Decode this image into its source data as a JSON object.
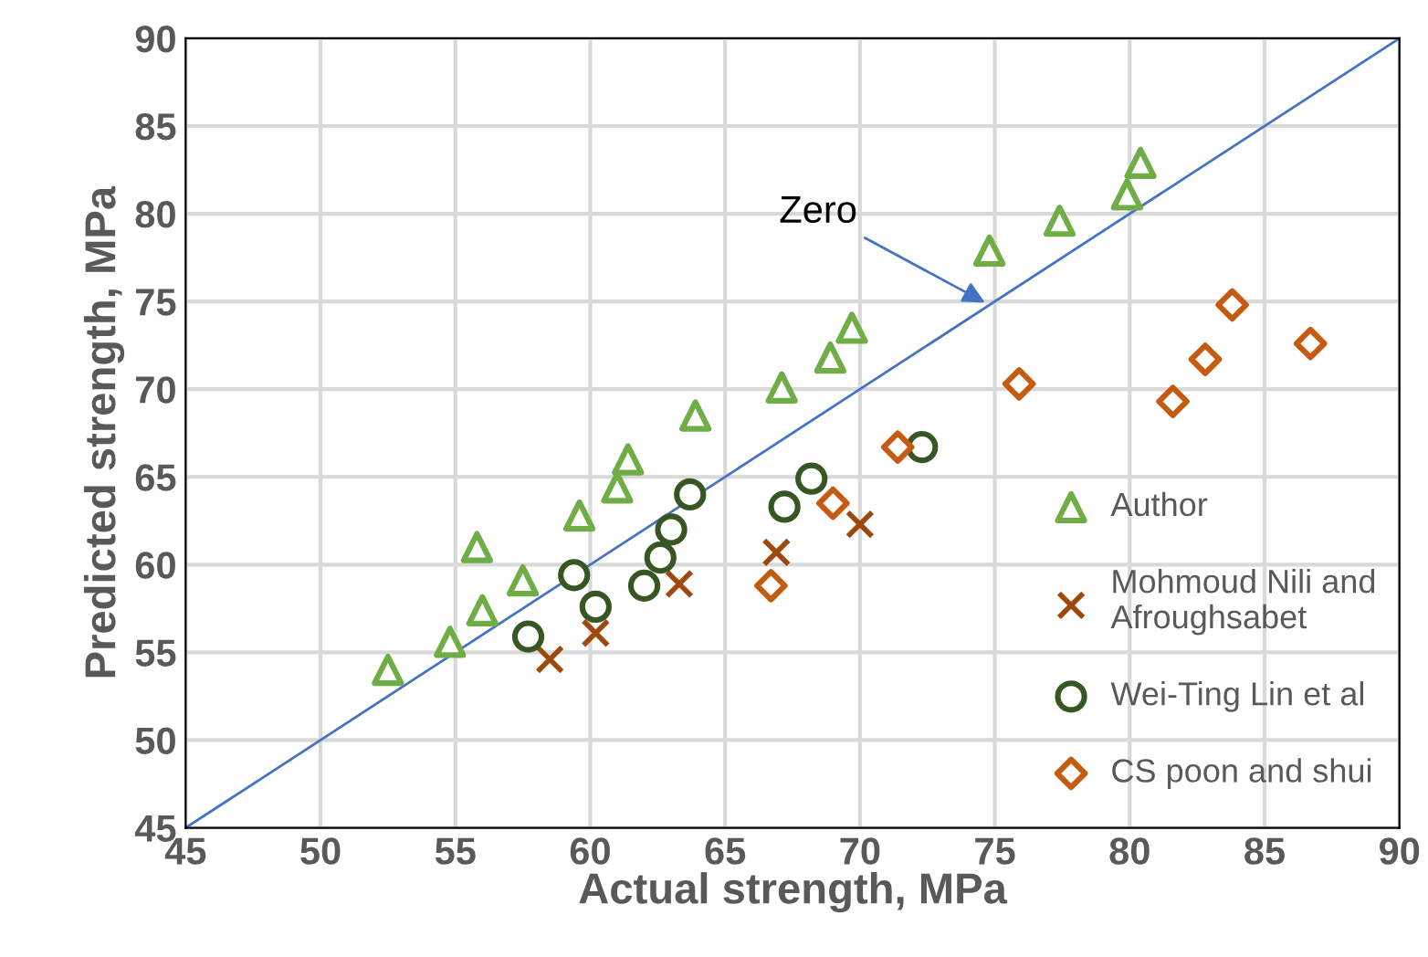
{
  "chart_data": {
    "type": "scatter",
    "xlabel": "Actual strength, MPa",
    "ylabel": "Predicted strength, MPa",
    "xlim": [
      45,
      90
    ],
    "ylim": [
      45,
      90
    ],
    "xticks": [
      45,
      50,
      55,
      60,
      65,
      70,
      75,
      80,
      85,
      90
    ],
    "yticks": [
      45,
      50,
      55,
      60,
      65,
      70,
      75,
      80,
      85,
      90
    ],
    "grid": true,
    "legend": "bottom right",
    "annotations": [
      {
        "text": "Zero",
        "x": 74.8,
        "y": 74.8
      }
    ],
    "series": [
      {
        "type": "line",
        "color": "#4472c4",
        "marker": "none",
        "x": [
          45,
          90
        ],
        "values": [
          45,
          90
        ]
      },
      {
        "name": "Author",
        "color": "#70ad47",
        "marker": "triangle",
        "x": [
          52.5,
          54.8,
          56.0,
          57.5,
          55.8,
          59.6,
          61.0,
          61.4,
          63.9,
          67.1,
          68.9,
          69.7,
          74.8,
          77.4,
          79.9,
          80.4
        ],
        "values": [
          54.0,
          55.6,
          57.4,
          59.1,
          61.0,
          62.8,
          64.4,
          66.0,
          68.5,
          70.1,
          71.8,
          73.5,
          77.9,
          79.6,
          81.1,
          82.9
        ]
      },
      {
        "name": "Mohmoud Nili and\nAfroughsabet",
        "color": "#9e480e",
        "marker": "cross",
        "x": [
          58.5,
          60.2,
          63.3,
          66.9,
          70.0
        ],
        "values": [
          54.6,
          56.1,
          58.9,
          60.7,
          62.3
        ]
      },
      {
        "name": "Wei-Ting Lin et al",
        "color": "#375623",
        "marker": "circle",
        "x": [
          57.7,
          60.2,
          59.4,
          62.0,
          62.6,
          63.0,
          63.7,
          67.2,
          68.2,
          72.3
        ],
        "values": [
          55.9,
          57.6,
          59.4,
          58.8,
          60.4,
          62.0,
          64.0,
          63.3,
          64.9,
          66.7
        ]
      },
      {
        "name": "CS poon and shui",
        "color": "#c55a11",
        "marker": "diamond",
        "x": [
          66.7,
          71.4,
          69.0,
          75.9,
          81.6,
          82.8,
          83.8,
          86.7
        ],
        "values": [
          58.8,
          66.7,
          63.5,
          70.3,
          69.3,
          71.7,
          74.8,
          72.6
        ]
      }
    ]
  }
}
